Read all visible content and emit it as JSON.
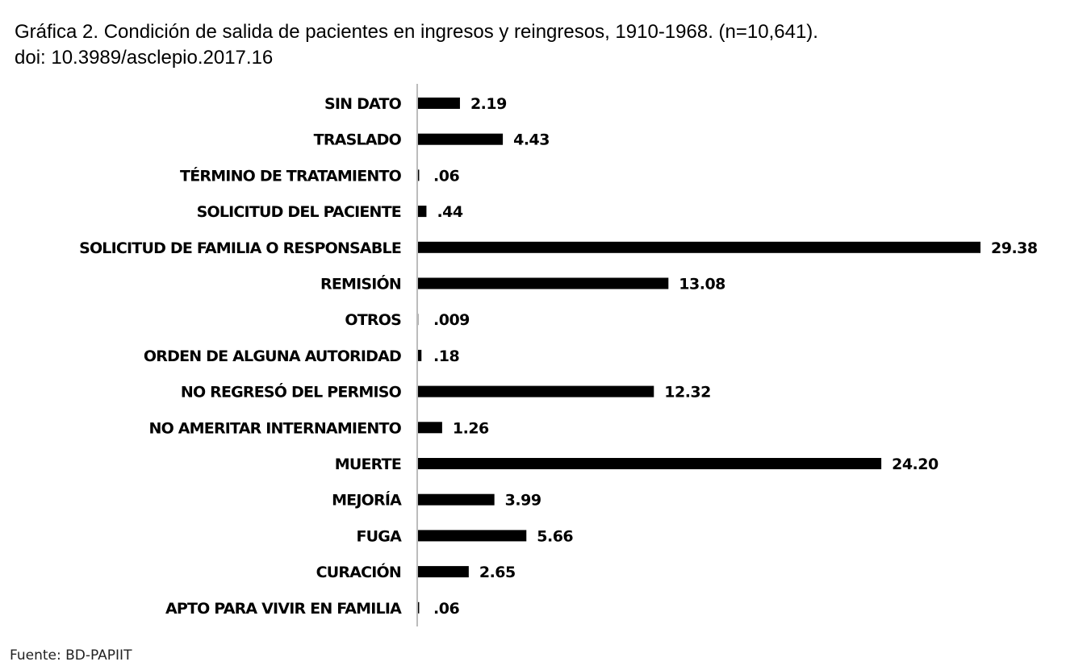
{
  "title": {
    "line1": "Gráfica 2. Condición de salida de pacientes en ingresos y reingresos, 1910-1968. (n=10,641).",
    "line2": "doi: 10.3989/asclepio.2017.16"
  },
  "footer": {
    "source": "Fuente: BD-PAPIIT"
  },
  "chart_data": {
    "type": "bar",
    "orientation": "horizontal",
    "title": "Gráfica 2. Condición de salida de pacientes en ingresos y reingresos, 1910-1968. (n=10,641).",
    "xlabel": "",
    "ylabel": "",
    "grid": false,
    "legend": "none",
    "bar_color": "#000000",
    "xlim": [
      0,
      30
    ],
    "categories": [
      "SIN DATO",
      "TRASLADO",
      "TÉRMINO DE TRATAMIENTO",
      "SOLICITUD DEL PACIENTE",
      "SOLICITUD DE FAMILIA O RESPONSABLE",
      "REMISIÓN",
      "OTROS",
      "ORDEN DE ALGUNA AUTORIDAD",
      "NO REGRESÓ DEL PERMISO",
      "NO AMERITAR INTERNAMIENTO",
      "MUERTE",
      "MEJORÍA",
      "FUGA",
      "CURACIÓN",
      "APTO PARA VIVIR EN FAMILIA"
    ],
    "values": [
      2.19,
      4.43,
      0.06,
      0.44,
      29.38,
      13.08,
      0.009,
      0.18,
      12.32,
      1.26,
      24.2,
      3.99,
      5.66,
      2.65,
      0.06
    ],
    "value_labels": [
      "2.19",
      "4.43",
      ".06",
      ".44",
      "29.38",
      "13.08",
      ".009",
      ".18",
      "12.32",
      "1.26",
      "24.20",
      "3.99",
      "5.66",
      "2.65",
      ".06"
    ]
  }
}
